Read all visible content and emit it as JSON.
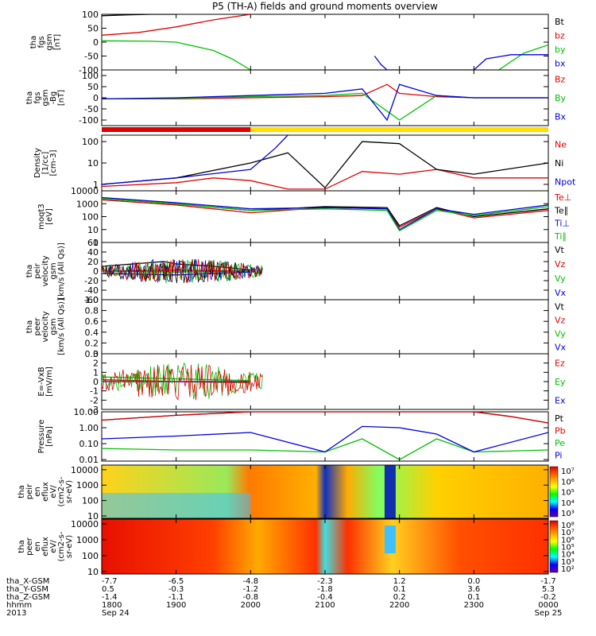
{
  "title": "P5 (TH-A) fields and ground moments overview",
  "panels": [
    {
      "ylabel": [
        "tha",
        "fgs",
        "gsm",
        "[nT]"
      ],
      "scale": "linear",
      "ticks": [
        "100",
        "50",
        "0",
        "-50",
        "-100"
      ],
      "tick_values": [
        100,
        50,
        0,
        -50,
        -100
      ],
      "ylim": [
        -100,
        100
      ],
      "legend": [
        {
          "text": "Bt",
          "color": "#000000"
        },
        {
          "text": "bz",
          "color": "#e00000"
        },
        {
          "text": "by",
          "color": "#00c000"
        },
        {
          "text": "bx",
          "color": "#0000e0"
        }
      ]
    },
    {
      "ylabel": [
        "tha",
        "fgs",
        "gsm",
        "-Bg",
        "[nT]"
      ],
      "scale": "linear",
      "ticks": [
        "100",
        "50",
        "0",
        "-50",
        "-100"
      ],
      "tick_values": [
        100,
        50,
        0,
        -50,
        -100
      ],
      "ylim": [
        -125,
        125
      ],
      "legend": [
        {
          "text": "Bz",
          "color": "#e00000"
        },
        {
          "text": "By",
          "color": "#00c000"
        },
        {
          "text": "Bx",
          "color": "#0000e0"
        }
      ]
    },
    {
      "ylabel": [
        "Density",
        "[1/cc]",
        "[cm-3]"
      ],
      "scale": "log",
      "ticks": [
        "100",
        "10",
        "1"
      ],
      "tick_values": [
        100,
        10,
        1
      ],
      "ylim": [
        0.5,
        200
      ],
      "legend": [
        {
          "text": "Ne",
          "color": "#e00000"
        },
        {
          "text": "Ni",
          "color": "#000000"
        },
        {
          "text": "Npot",
          "color": "#0000e0"
        }
      ]
    },
    {
      "ylabel": [
        "moqt3",
        "[eV]"
      ],
      "scale": "log",
      "ticks": [
        "10000",
        "1000",
        "100",
        "10",
        "1"
      ],
      "tick_values": [
        10000,
        1000,
        100,
        10,
        1
      ],
      "ylim": [
        1,
        10000
      ],
      "legend": [
        {
          "text": "Te⊥",
          "color": "#e00000"
        },
        {
          "text": "Te∥",
          "color": "#000000"
        },
        {
          "text": "Ti⊥",
          "color": "#0000e0"
        },
        {
          "text": "Ti∥",
          "color": "#00c000"
        }
      ]
    },
    {
      "ylabel": [
        "tha",
        "peir",
        "velocity",
        "gsm",
        "[km/s (All Qs)]"
      ],
      "scale": "linear",
      "ticks": [
        "60",
        "40",
        "20",
        "0",
        "-20",
        "-40",
        "-60"
      ],
      "tick_values": [
        60,
        40,
        20,
        0,
        -20,
        -40,
        -60
      ],
      "ylim": [
        -60,
        60
      ],
      "legend": [
        {
          "text": "Vt",
          "color": "#000000"
        },
        {
          "text": "Vz",
          "color": "#e00000"
        },
        {
          "text": "Vy",
          "color": "#00c000"
        },
        {
          "text": "Vx",
          "color": "#0000e0"
        }
      ]
    },
    {
      "ylabel": [
        "tha",
        "peer",
        "velocity",
        "gsm",
        "[km/s (All Qs)]"
      ],
      "scale": "linear",
      "ticks": [
        "1.0",
        "0.8",
        "0.6",
        "0.4",
        "0.2",
        "0.0"
      ],
      "tick_values": [
        1.0,
        0.8,
        0.6,
        0.4,
        0.2,
        0.0
      ],
      "ylim": [
        0,
        1
      ],
      "legend": [
        {
          "text": "Vt",
          "color": "#000000"
        },
        {
          "text": "Vz",
          "color": "#e00000"
        },
        {
          "text": "Vy",
          "color": "#00c000"
        },
        {
          "text": "Vx",
          "color": "#0000e0"
        }
      ]
    },
    {
      "ylabel": [
        "E=-VxB",
        "[mV/m]"
      ],
      "scale": "linear",
      "ticks": [
        "3",
        "2",
        "1",
        "0",
        "-1",
        "-2",
        "-3"
      ],
      "tick_values": [
        3,
        2,
        1,
        0,
        -1,
        -2,
        -3
      ],
      "ylim": [
        -3,
        3
      ],
      "legend": [
        {
          "text": "Ez",
          "color": "#e00000"
        },
        {
          "text": "Ey",
          "color": "#00c000"
        },
        {
          "text": "Ex",
          "color": "#0000e0"
        }
      ]
    },
    {
      "ylabel": [
        "Pressure",
        "[nPa]"
      ],
      "scale": "log",
      "ticks": [
        "10.00",
        "1.00",
        "0.10",
        "0.01"
      ],
      "tick_values": [
        10,
        1,
        0.1,
        0.01
      ],
      "ylim": [
        0.008,
        10
      ],
      "legend": [
        {
          "text": "Pt",
          "color": "#000000"
        },
        {
          "text": "Pb",
          "color": "#e00000"
        },
        {
          "text": "Pe",
          "color": "#00c000"
        },
        {
          "text": "Pi",
          "color": "#0000e0"
        }
      ]
    },
    {
      "ylabel": [
        "tha",
        "peir",
        "en",
        "eflux",
        "eV/",
        "(cm2-s-",
        "sr-eV)"
      ],
      "scale": "log",
      "ticks": [
        "10000",
        "1000",
        "100",
        "10"
      ],
      "tick_values": [
        10000,
        1000,
        100,
        10
      ],
      "ylim": [
        7,
        20000
      ],
      "colorbar_ticks": [
        "10⁷",
        "10⁶",
        "10⁵",
        "10⁴",
        "10³"
      ]
    },
    {
      "ylabel": [
        "tha",
        "peer",
        "en",
        "eflux",
        "eV/",
        "(cm2-s-",
        "sr-eV)"
      ],
      "scale": "log",
      "ticks": [
        "10000",
        "1000",
        "100",
        "10"
      ],
      "tick_values": [
        10000,
        1000,
        100,
        10
      ],
      "ylim": [
        7,
        20000
      ],
      "colorbar_ticks": [
        "10⁸",
        "10⁷",
        "10⁶",
        "10⁵",
        "10⁴",
        "10³",
        "10²"
      ]
    }
  ],
  "xaxis": {
    "row_labels": [
      "tha_X-GSM",
      "tha_Y-GSM",
      "tha_Z-GSM",
      "hhmm",
      "2013"
    ],
    "columns": [
      {
        "x": [
          "-7.7",
          "0.5",
          "-1.4",
          "1800",
          "Sep 24"
        ]
      },
      {
        "x": [
          "-6.5",
          "-0.3",
          "-1.1",
          "1900",
          ""
        ]
      },
      {
        "x": [
          "-4.8",
          "-1.2",
          "-0.8",
          "2000",
          ""
        ]
      },
      {
        "x": [
          "-2.3",
          "-1.8",
          "-0.4",
          "2100",
          ""
        ]
      },
      {
        "x": [
          "1.2",
          "0.1",
          "0.2",
          "2200",
          ""
        ]
      },
      {
        "x": [
          "0.0",
          "3.6",
          "0.1",
          "2300",
          ""
        ]
      },
      {
        "x": [
          "-1.7",
          "5.3",
          "-0.2",
          "0000",
          "Sep 25"
        ]
      }
    ]
  },
  "chart_data": [
    {
      "type": "line",
      "title": "P5 (TH-A) fields and ground moments overview",
      "x_unit": "hhmm",
      "x": [
        1800,
        1900,
        2000,
        2100,
        2200,
        2300,
        2400
      ],
      "ylabel": "tha fgs gsm [nT]",
      "ylim": [
        -100,
        100
      ],
      "series": [
        {
          "name": "Bt",
          "x": [
            1800,
            1820,
            1840,
            1900
          ],
          "y": [
            95,
            98,
            100,
            100
          ]
        },
        {
          "name": "bz",
          "x": [
            1800,
            1830,
            1900,
            1930,
            2000
          ],
          "y": [
            25,
            35,
            55,
            80,
            100
          ]
        },
        {
          "name": "by",
          "x": [
            1800,
            1840,
            1900,
            1930,
            1945,
            2000,
            2320,
            2340,
            2400
          ],
          "y": [
            5,
            3,
            0,
            -30,
            -60,
            -100,
            -100,
            -40,
            -10
          ]
        },
        {
          "name": "bx",
          "x": [
            2140,
            2145,
            2150,
            2300,
            2310,
            2330,
            2400
          ],
          "y": [
            -50,
            -80,
            -100,
            -100,
            -60,
            -45,
            -45
          ]
        }
      ]
    },
    {
      "type": "line",
      "ylabel": "tha fgs gsm -Bg [nT]",
      "ylim": [
        -125,
        125
      ],
      "series": [
        {
          "name": "Bz",
          "x": [
            1800,
            1900,
            2000,
            2100,
            2130,
            2150,
            2200,
            2230,
            2300,
            2400
          ],
          "y": [
            -5,
            -5,
            0,
            5,
            10,
            60,
            20,
            5,
            0,
            0
          ]
        },
        {
          "name": "By",
          "x": [
            1800,
            1900,
            2000,
            2100,
            2130,
            2150,
            2200,
            2230,
            2300,
            2400
          ],
          "y": [
            -5,
            -3,
            5,
            10,
            20,
            -60,
            -100,
            10,
            0,
            0
          ]
        },
        {
          "name": "Bx",
          "x": [
            1800,
            1900,
            2000,
            2100,
            2130,
            2150,
            2200,
            2230,
            2300,
            2400
          ],
          "y": [
            -5,
            0,
            10,
            20,
            40,
            -100,
            60,
            10,
            0,
            0
          ]
        }
      ]
    },
    {
      "type": "line",
      "ylabel": "Density [1/cc] [cm-3]",
      "scale": "log",
      "ylim": [
        0.5,
        200
      ],
      "series": [
        {
          "name": "Ne",
          "x": [
            1800,
            1900,
            1930,
            2000,
            2030,
            2100,
            2130,
            2200,
            2230,
            2300,
            2400
          ],
          "y": [
            0.8,
            1.2,
            2,
            1.5,
            0.6,
            0.6,
            4,
            3,
            5,
            2,
            2
          ]
        },
        {
          "name": "Ni",
          "x": [
            1800,
            1900,
            2000,
            2030,
            2100,
            2130,
            2200,
            2230,
            2300,
            2400
          ],
          "y": [
            1,
            2,
            10,
            30,
            0.7,
            100,
            80,
            5,
            3,
            10
          ]
        },
        {
          "name": "Npot",
          "x": [
            1800,
            1900,
            2000,
            2020,
            2030
          ],
          "y": [
            1,
            2,
            5,
            50,
            200
          ]
        }
      ]
    },
    {
      "type": "line",
      "ylabel": "moqt3 [eV]",
      "scale": "log",
      "ylim": [
        1,
        10000
      ],
      "series": [
        {
          "name": "Te⊥",
          "x": [
            1800,
            1900,
            2000,
            2100,
            2150,
            2200,
            2230,
            2300,
            2400
          ],
          "y": [
            2000,
            800,
            200,
            500,
            400,
            15,
            400,
            80,
            300
          ]
        },
        {
          "name": "Te∥",
          "x": [
            1800,
            1900,
            2000,
            2100,
            2150,
            2200,
            2230,
            2300,
            2400
          ],
          "y": [
            2500,
            1000,
            300,
            600,
            500,
            20,
            500,
            100,
            400
          ]
        },
        {
          "name": "Ti⊥",
          "x": [
            1800,
            1900,
            2000,
            2100,
            2150,
            2200,
            2230,
            2300,
            2400
          ],
          "y": [
            3000,
            1200,
            400,
            500,
            400,
            10,
            400,
            150,
            800
          ]
        },
        {
          "name": "Ti∥",
          "x": [
            1800,
            1900,
            2000,
            2100,
            2150,
            2200,
            2230,
            2300,
            2400
          ],
          "y": [
            2500,
            1000,
            300,
            400,
            300,
            8,
            300,
            120,
            600
          ]
        }
      ]
    },
    {
      "type": "line",
      "ylabel": "tha peir velocity gsm [km/s (All Qs)]",
      "ylim": [
        -60,
        60
      ],
      "series": [
        {
          "name": "Vt",
          "x": [
            1800,
            1850,
            1900,
            1930,
            1950,
            2000
          ],
          "y": [
            10,
            20,
            15,
            10,
            5,
            2
          ]
        },
        {
          "name": "Vz",
          "x": [
            1800,
            1900,
            2000
          ],
          "y": [
            0,
            2,
            0
          ]
        },
        {
          "name": "Vy",
          "x": [
            1800,
            1900,
            2000
          ],
          "y": [
            0,
            -2,
            0
          ]
        },
        {
          "name": "Vx",
          "x": [
            1800,
            1900,
            2000
          ],
          "y": [
            -5,
            -8,
            -2
          ]
        }
      ]
    },
    {
      "type": "line",
      "ylabel": "tha peer velocity gsm [km/s (All Qs)]",
      "ylim": [
        0,
        1
      ],
      "series": []
    },
    {
      "type": "line",
      "ylabel": "E=-VxB [mV/m]",
      "ylim": [
        -3,
        3
      ],
      "series": [
        {
          "name": "Ez",
          "x": [
            1800,
            1900,
            2000
          ],
          "y": [
            0.2,
            0,
            -0.1
          ]
        },
        {
          "name": "Ey",
          "x": [
            1800,
            1900,
            2000
          ],
          "y": [
            0.5,
            0.3,
            0.1
          ]
        },
        {
          "name": "Ex",
          "x": [
            1800,
            1900,
            2000
          ],
          "y": [
            0,
            0,
            0
          ]
        }
      ]
    },
    {
      "type": "line",
      "ylabel": "Pressure [nPa]",
      "scale": "log",
      "ylim": [
        0.008,
        10
      ],
      "series": [
        {
          "name": "Pt",
          "x": [
            1800,
            1900,
            2000,
            2030,
            2300,
            2330,
            2400
          ],
          "y": [
            3,
            6,
            10,
            10,
            10,
            5,
            2
          ]
        },
        {
          "name": "Pb",
          "x": [
            1800,
            1900,
            2000,
            2030,
            2300,
            2330,
            2400
          ],
          "y": [
            3,
            6,
            10,
            10,
            10,
            5,
            2
          ]
        },
        {
          "name": "Pe",
          "x": [
            1800,
            1900,
            2000,
            2100,
            2130,
            2200,
            2230,
            2300,
            2400
          ],
          "y": [
            0.05,
            0.04,
            0.04,
            0.03,
            0.2,
            0.01,
            0.2,
            0.03,
            0.04
          ]
        },
        {
          "name": "Pi",
          "x": [
            1800,
            1900,
            2000,
            2100,
            2130,
            2200,
            2230,
            2300,
            2400
          ],
          "y": [
            0.2,
            0.3,
            0.5,
            0.03,
            1.2,
            1.0,
            0.4,
            0.03,
            0.5
          ]
        }
      ]
    },
    {
      "type": "heatmap",
      "ylabel": "tha peir en eflux eV/(cm2-s-sr-eV)",
      "scale": "log",
      "ylim": [
        7,
        20000
      ],
      "colorbar": {
        "min_exp": 3,
        "max_exp": 7
      }
    },
    {
      "type": "heatmap",
      "ylabel": "tha peer en eflux eV/(cm2-s-sr-eV)",
      "scale": "log",
      "ylim": [
        7,
        20000
      ],
      "colorbar": {
        "min_exp": 2,
        "max_exp": 8
      }
    }
  ]
}
